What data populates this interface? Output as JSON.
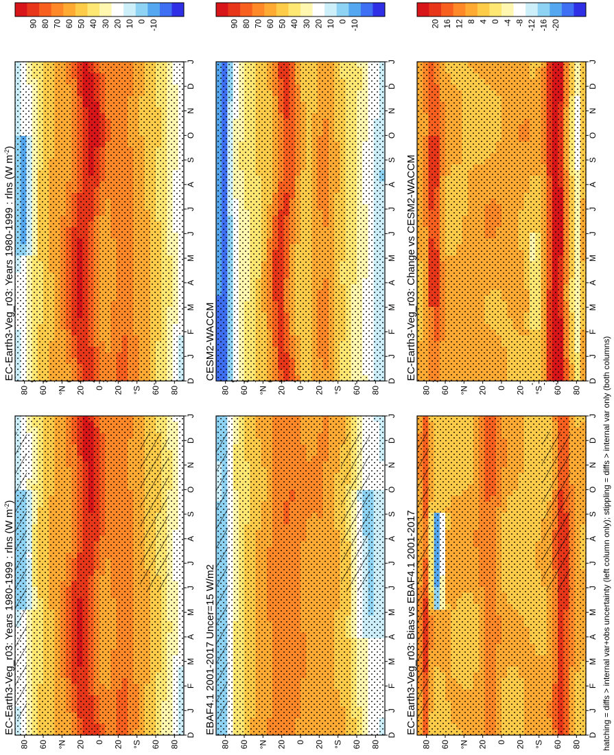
{
  "footnote": "hatching = diffs > internal var+obs uncertainty (left column only); stippling = diffs > internal var only (both columns)",
  "chart_data": [
    {
      "type": "heatmap",
      "title": "EC-Earth3-Veg_r03: Years 1980-1999 : rlns (W m",
      "title_sup": "-2",
      "title_end": ")",
      "x_ticks": [
        "D",
        "J",
        "F",
        "M",
        "A",
        "M",
        "J",
        "J",
        "A",
        "S",
        "O",
        "N",
        "D",
        "J"
      ],
      "y_ticks": [
        "80",
        "60",
        "°N",
        "20",
        "0",
        "20",
        "°S",
        "60",
        "80"
      ],
      "colorbar_ticks": [
        "90",
        "80",
        "70",
        "60",
        "50",
        "40",
        "30",
        "20",
        "10",
        "0",
        "-10"
      ],
      "color_range": [
        -15,
        95
      ],
      "hatching": true,
      "stippling": true
    },
    {
      "type": "heatmap",
      "title": "EC-Earth3-Veg_r03: Years 1980-1999 : rlns (W m",
      "title_sup": "-2",
      "title_end": ")",
      "x_ticks": [
        "D",
        "J",
        "F",
        "M",
        "A",
        "M",
        "J",
        "J",
        "A",
        "S",
        "O",
        "N",
        "D",
        "J"
      ],
      "y_ticks": [
        "80",
        "60",
        "°N",
        "20",
        "0",
        "20",
        "°S",
        "60",
        "80"
      ],
      "colorbar_ticks": [
        "90",
        "80",
        "70",
        "60",
        "50",
        "40",
        "30",
        "20",
        "10",
        "0",
        "-10"
      ],
      "color_range": [
        -15,
        95
      ],
      "hatching": false,
      "stippling": true
    },
    {
      "type": "heatmap",
      "title": "EBAF4.1 2001-2017 Uncer=15 W/m2",
      "x_ticks": [
        "D",
        "J",
        "F",
        "M",
        "A",
        "M",
        "J",
        "J",
        "A",
        "S",
        "O",
        "N",
        "D",
        "J"
      ],
      "y_ticks": [
        "80",
        "60",
        "°N",
        "20",
        "0",
        "20",
        "°S",
        "60",
        "80"
      ],
      "colorbar_ticks": [
        "90",
        "80",
        "70",
        "60",
        "50",
        "40",
        "30",
        "20",
        "10",
        "0",
        "-10"
      ],
      "color_range": [
        -15,
        95
      ],
      "hatching": true,
      "stippling": true
    },
    {
      "type": "heatmap",
      "title": "CESM2-WACCM",
      "x_ticks": [
        "D",
        "J",
        "F",
        "M",
        "A",
        "M",
        "J",
        "J",
        "A",
        "S",
        "O",
        "N",
        "D",
        "J"
      ],
      "y_ticks": [
        "80",
        "60",
        "°N",
        "20",
        "0",
        "20",
        "°S",
        "60",
        "80"
      ],
      "colorbar_ticks": [
        "90",
        "80",
        "70",
        "60",
        "50",
        "40",
        "30",
        "20",
        "10",
        "0",
        "-10"
      ],
      "color_range": [
        -15,
        95
      ],
      "hatching": false,
      "stippling": true
    },
    {
      "type": "heatmap",
      "title": "EC-Earth3-Veg_r03: Bias vs EBAF4.1 2001-2017",
      "x_ticks": [
        "D",
        "J",
        "F",
        "M",
        "A",
        "M",
        "J",
        "J",
        "A",
        "S",
        "O",
        "N",
        "D",
        "J"
      ],
      "y_ticks": [
        "80",
        "60",
        "°N",
        "20",
        "0",
        "20",
        "°S",
        "60",
        "80"
      ],
      "colorbar_ticks": [
        "20",
        "16",
        "12",
        "8",
        "4",
        "0",
        "-4",
        "-8",
        "-12",
        "-16",
        "-20"
      ],
      "color_range": [
        -22,
        22
      ],
      "hatching": true,
      "stippling": true
    },
    {
      "type": "heatmap",
      "title": "EC-Earth3-Veg_r03: Change vs CESM2-WACCM",
      "x_ticks": [
        "D",
        "J",
        "F",
        "M",
        "A",
        "M",
        "J",
        "J",
        "A",
        "S",
        "O",
        "N",
        "D",
        "J"
      ],
      "y_ticks": [
        "80",
        "60",
        "°N",
        "20",
        "0",
        "20",
        "°S",
        "60",
        "80"
      ],
      "colorbar_ticks": [
        "20",
        "16",
        "12",
        "8",
        "4",
        "0",
        "-4",
        "-8",
        "-12",
        "-16",
        "-20"
      ],
      "color_range": [
        -22,
        22
      ],
      "hatching": false,
      "stippling": true
    }
  ]
}
